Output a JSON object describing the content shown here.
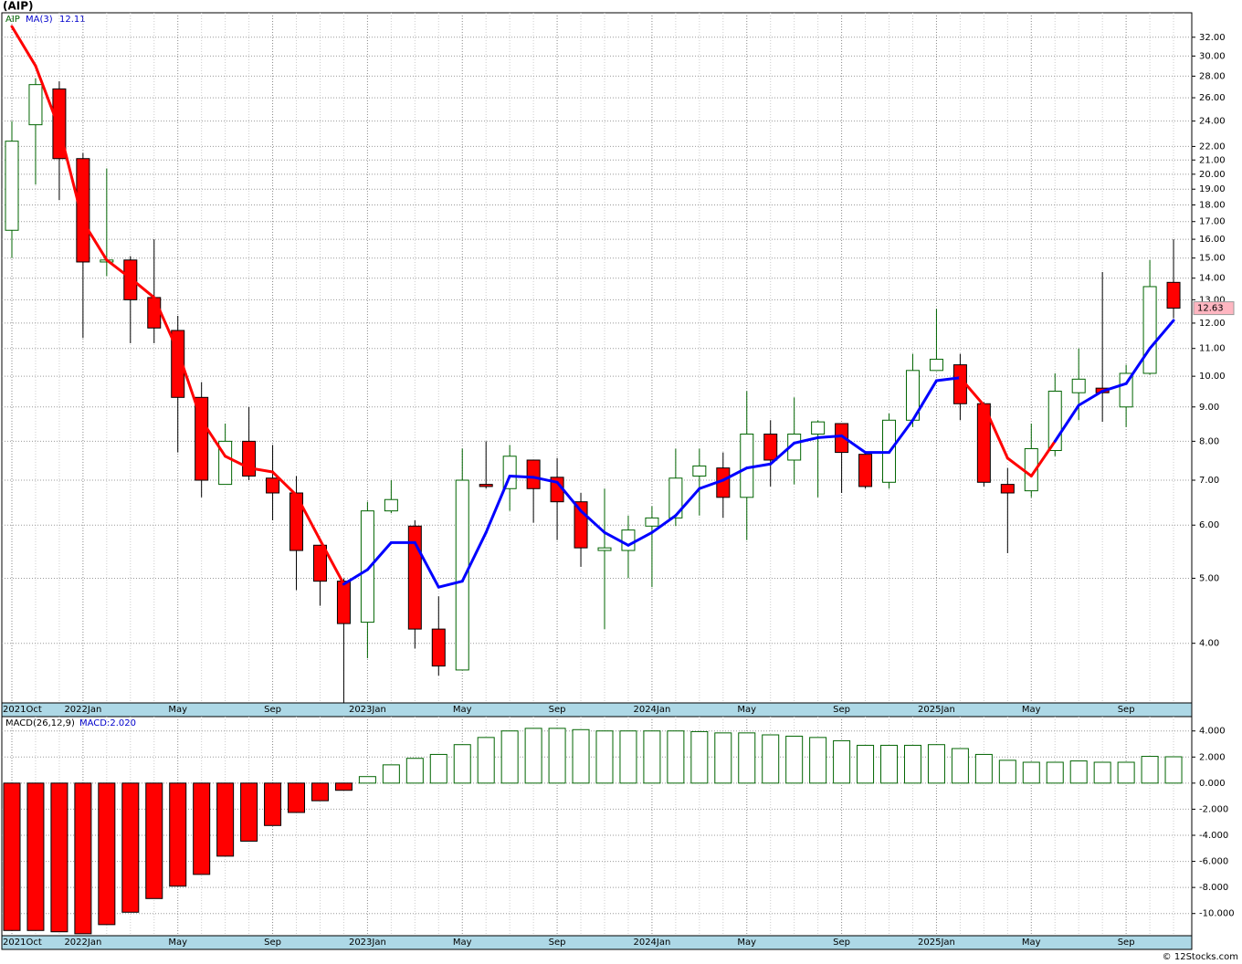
{
  "chart_data": [
    {
      "type": "candlestick",
      "title": "(AIP)",
      "symbol": "AIP",
      "log_scale": true,
      "grid": true,
      "categories": [
        "2021Oct",
        null,
        null,
        "2022Jan",
        null,
        null,
        null,
        "May",
        null,
        null,
        null,
        "Sep",
        null,
        null,
        null,
        "2023Jan",
        null,
        null,
        null,
        "May",
        null,
        null,
        null,
        "Sep",
        null,
        null,
        null,
        "2024Jan",
        null,
        null,
        null,
        "May",
        null,
        null,
        null,
        "Sep",
        null,
        null,
        null,
        "2025Jan",
        null,
        null,
        null,
        "May",
        null,
        null,
        null,
        "Sep",
        null,
        null
      ],
      "open": [
        16.5,
        23.7,
        26.8,
        21.1,
        14.8,
        14.9,
        13.1,
        11.7,
        9.3,
        6.9,
        8.0,
        7.05,
        6.7,
        5.6,
        4.95,
        4.3,
        6.3,
        5.98,
        4.2,
        3.65,
        6.9,
        6.8,
        7.5,
        7.07,
        6.5,
        5.5,
        5.5,
        5.98,
        6.15,
        7.1,
        7.3,
        6.6,
        8.2,
        7.5,
        8.2,
        8.5,
        7.65,
        6.95,
        8.6,
        10.2,
        10.4,
        9.1,
        6.9,
        6.75,
        7.75,
        9.45,
        9.6,
        9.0,
        10.1,
        13.8
      ],
      "high": [
        24,
        27.8,
        27.5,
        21.5,
        20.4,
        15.1,
        16,
        12.3,
        9.8,
        8.5,
        9.0,
        7.9,
        7.1,
        5.6,
        5.0,
        6.5,
        7.0,
        6.1,
        4.7,
        7.8,
        8.0,
        7.9,
        7.5,
        7.55,
        6.7,
        6.8,
        6.2,
        6.4,
        7.8,
        7.8,
        7.7,
        9.5,
        8.6,
        9.3,
        8.6,
        8.5,
        7.7,
        8.8,
        10.8,
        12.6,
        10.8,
        9.15,
        7.3,
        8.5,
        10.1,
        11.0,
        14.3,
        10.4,
        14.9,
        16
      ],
      "low": [
        15,
        19.3,
        18.3,
        11.4,
        14.1,
        11.2,
        11.2,
        7.7,
        6.6,
        6.9,
        7.0,
        6.1,
        4.8,
        4.55,
        3.26,
        3.8,
        6.25,
        3.93,
        3.58,
        3.65,
        6.8,
        6.3,
        6.05,
        5.7,
        5.2,
        4.2,
        5.0,
        4.85,
        5.98,
        6.2,
        6.15,
        5.7,
        6.85,
        6.9,
        6.6,
        6.7,
        6.8,
        6.8,
        8.4,
        10.5,
        8.6,
        6.85,
        5.45,
        6.6,
        7.6,
        8.6,
        8.55,
        8.4,
        10.05,
        12.2
      ],
      "close": [
        22.4,
        27.2,
        21.1,
        14.8,
        14.9,
        13.0,
        11.8,
        9.3,
        7.0,
        8.0,
        7.1,
        6.7,
        5.5,
        4.95,
        4.28,
        6.3,
        6.55,
        4.2,
        3.7,
        7.0,
        6.85,
        7.6,
        6.8,
        6.5,
        5.55,
        5.55,
        5.9,
        6.15,
        7.05,
        7.35,
        6.6,
        8.2,
        7.5,
        8.2,
        8.55,
        7.7,
        6.85,
        8.6,
        10.2,
        10.6,
        9.1,
        6.95,
        6.7,
        7.8,
        9.5,
        9.9,
        9.45,
        10.1,
        13.6,
        12.63
      ],
      "up_color": "#006400",
      "down_color": "#ff0000",
      "ma": {
        "name": "MA(3)",
        "values": [
          33.2,
          29.0,
          23.4,
          17,
          14.9,
          14,
          13.1,
          10.9,
          8.6,
          7.6,
          7.3,
          7.2,
          6.65,
          5.7,
          4.9,
          5.15,
          5.65,
          5.65,
          4.85,
          4.95,
          5.85,
          7.1,
          7.07,
          6.95,
          6.3,
          5.85,
          5.6,
          5.85,
          6.2,
          6.8,
          7.0,
          7.3,
          7.4,
          7.95,
          8.1,
          8.15,
          7.7,
          7.7,
          8.6,
          9.85,
          9.95,
          9.05,
          7.55,
          7.1,
          8.0,
          9.05,
          9.5,
          9.75,
          11.0,
          12.11
        ],
        "colors": [
          "#ff0000",
          "#ff0000",
          "#ff0000",
          "#ff0000",
          "#ff0000",
          "#ff0000",
          "#ff0000",
          "#ff0000",
          "#ff0000",
          "#ff0000",
          "#ff0000",
          "#ff0000",
          "#ff0000",
          "#ff0000",
          "#ff0000",
          "#0000ff",
          "#0000ff",
          "#0000ff",
          "#0000ff",
          "#0000ff",
          "#0000ff",
          "#0000ff",
          "#0000ff",
          "#0000ff",
          "#0000ff",
          "#0000ff",
          "#0000ff",
          "#0000ff",
          "#0000ff",
          "#0000ff",
          "#0000ff",
          "#0000ff",
          "#0000ff",
          "#0000ff",
          "#0000ff",
          "#0000ff",
          "#0000ff",
          "#0000ff",
          "#0000ff",
          "#0000ff",
          "#0000ff",
          "#ff0000",
          "#ff0000",
          "#ff0000",
          "#ff0000",
          "#0000ff",
          "#0000ff",
          "#0000ff",
          "#0000ff",
          "#0000ff"
        ]
      },
      "ylim": [
        3.26,
        34.8
      ],
      "yticks": [
        {
          "value": 4,
          "label": "4.00"
        },
        {
          "value": 5,
          "label": "5.00"
        },
        {
          "value": 6,
          "label": "6.00"
        },
        {
          "value": 7,
          "label": "7.00"
        },
        {
          "value": 8,
          "label": "8.00"
        },
        {
          "value": 9,
          "label": "9.00"
        },
        {
          "value": 10,
          "label": "10.00"
        },
        {
          "value": 11,
          "label": "11.00"
        },
        {
          "value": 12,
          "label": "12.00"
        },
        {
          "value": 13,
          "label": "13.00"
        },
        {
          "value": 14,
          "label": "14.00"
        },
        {
          "value": 15,
          "label": "15.00"
        },
        {
          "value": 16,
          "label": "16.00"
        },
        {
          "value": 17,
          "label": "17.00"
        },
        {
          "value": 18,
          "label": "18.00"
        },
        {
          "value": 19,
          "label": "19.00"
        },
        {
          "value": 20,
          "label": "20.00"
        },
        {
          "value": 21,
          "label": "21.00"
        },
        {
          "value": 22,
          "label": "22.00"
        },
        {
          "value": 24,
          "label": "24.00"
        },
        {
          "value": 26,
          "label": "26.00"
        },
        {
          "value": 28,
          "label": "28.00"
        },
        {
          "value": 30,
          "label": "30.00"
        },
        {
          "value": 32,
          "label": "32.00"
        }
      ]
    },
    {
      "type": "bar",
      "title": "MACD(26,12,9)",
      "legend_value": "MACD:2.020",
      "grid": true,
      "values": [
        -11.3,
        -11.3,
        -11.4,
        -11.55,
        -10.85,
        -9.9,
        -8.85,
        -7.9,
        -7.0,
        -5.6,
        -4.45,
        -3.25,
        -2.25,
        -1.35,
        -0.55,
        0.5,
        1.4,
        1.9,
        2.2,
        2.95,
        3.5,
        4.0,
        4.2,
        4.2,
        4.1,
        4.0,
        4.0,
        4.0,
        4.0,
        3.95,
        3.85,
        3.85,
        3.7,
        3.6,
        3.5,
        3.25,
        2.9,
        2.9,
        2.9,
        2.95,
        2.65,
        2.2,
        1.75,
        1.6,
        1.6,
        1.7,
        1.6,
        1.6,
        2.05,
        2.02
      ],
      "positive_color": "#006400",
      "negative_color": "#ff0000",
      "ylim": [
        -11.7,
        5.1
      ],
      "yticks": [
        {
          "value": -10,
          "label": "-10.000"
        },
        {
          "value": -8,
          "label": "-8.000"
        },
        {
          "value": -6,
          "label": "-6.000"
        },
        {
          "value": -4,
          "label": "-4.000"
        },
        {
          "value": -2,
          "label": "-2.000"
        },
        {
          "value": 0,
          "label": "0.000"
        },
        {
          "value": 2,
          "label": "2.000"
        },
        {
          "value": 4,
          "label": "4.000"
        }
      ]
    }
  ],
  "footer": "© 12Stocks.com"
}
